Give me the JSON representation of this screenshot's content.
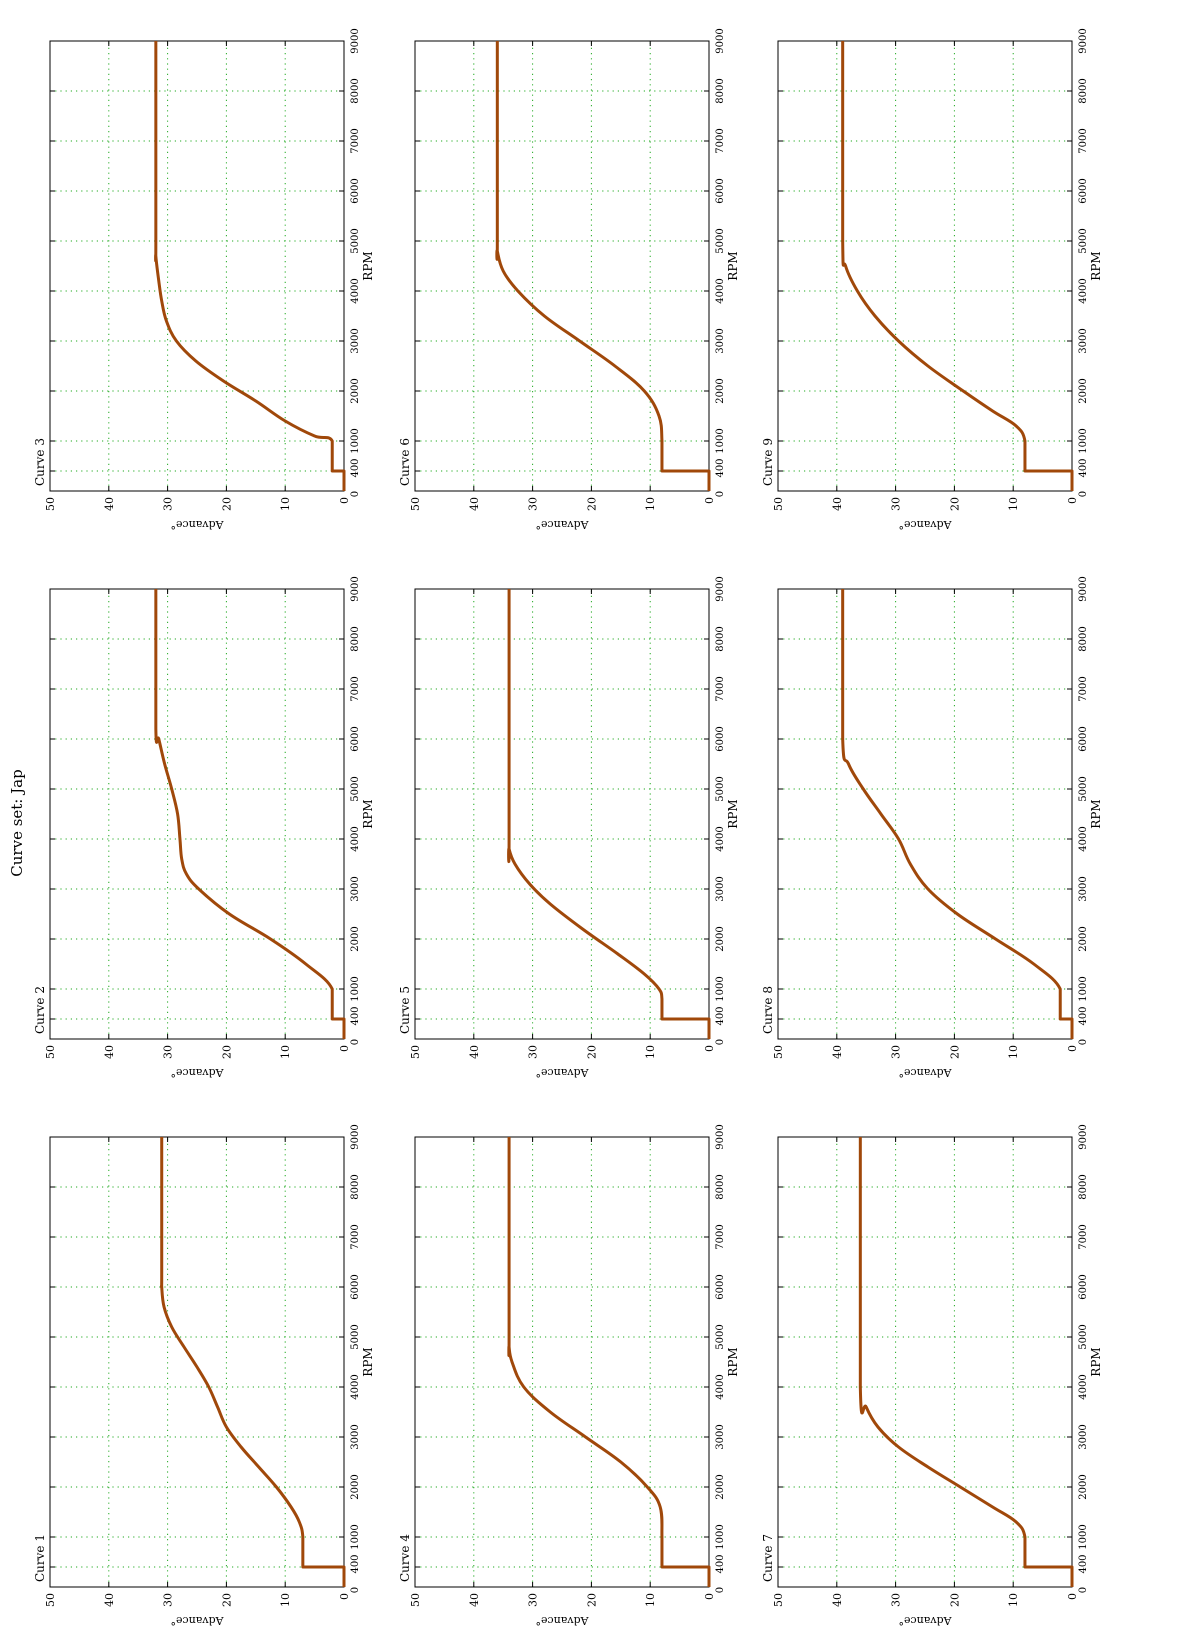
{
  "figure": {
    "title": "Curve set: Jap"
  },
  "chart_data": [
    {
      "type": "line",
      "title": "Curve 1",
      "xlabel": "RPM",
      "ylabel": "Advance°",
      "xlim": [
        0,
        9000
      ],
      "ylim": [
        0,
        50
      ],
      "xticks": [
        0,
        400,
        1000,
        2000,
        3000,
        4000,
        5000,
        6000,
        7000,
        8000,
        9000
      ],
      "yticks": [
        0,
        10,
        20,
        30,
        40,
        50
      ],
      "grid": true,
      "series": [
        {
          "color": "#a0480a",
          "x": [
            0,
            400,
            400,
            1000,
            1300,
            1600,
            2000,
            2400,
            2800,
            3200,
            3600,
            4000,
            4400,
            4800,
            5200,
            5600,
            6000,
            6300,
            9000
          ],
          "y": [
            0,
            0,
            7,
            7,
            7.6,
            9,
            11.5,
            14.5,
            17.5,
            20,
            21.5,
            23,
            25,
            27.2,
            29.3,
            30.6,
            31,
            31,
            31
          ]
        }
      ]
    },
    {
      "type": "line",
      "title": "Curve 2",
      "xlabel": "RPM",
      "ylabel": "Advance°",
      "xlim": [
        0,
        9000
      ],
      "ylim": [
        0,
        50
      ],
      "xticks": [
        0,
        400,
        1000,
        2000,
        3000,
        4000,
        5000,
        6000,
        7000,
        8000,
        9000
      ],
      "yticks": [
        0,
        10,
        20,
        30,
        40,
        50
      ],
      "grid": true,
      "series": [
        {
          "color": "#a0480a",
          "x": [
            0,
            400,
            400,
            1000,
            1500,
            2000,
            2500,
            3000,
            3300,
            3600,
            4000,
            4500,
            5000,
            5500,
            6000,
            6200,
            9000
          ],
          "y": [
            0,
            0,
            2,
            2,
            6.5,
            12.5,
            19.5,
            24.7,
            26.8,
            27.6,
            27.9,
            28.3,
            29.3,
            30.5,
            31.5,
            32,
            32
          ]
        }
      ]
    },
    {
      "type": "line",
      "title": "Curve 3",
      "xlabel": "RPM",
      "ylabel": "Advance°",
      "xlim": [
        0,
        9000
      ],
      "ylim": [
        0,
        50
      ],
      "xticks": [
        0,
        400,
        1000,
        2000,
        3000,
        4000,
        5000,
        6000,
        7000,
        8000,
        9000
      ],
      "yticks": [
        0,
        10,
        20,
        30,
        40,
        50
      ],
      "grid": true,
      "series": [
        {
          "color": "#a0480a",
          "x": [
            0,
            400,
            400,
            1000,
            1100,
            1400,
            1800,
            2200,
            2600,
            3000,
            3400,
            3800,
            4200,
            4700,
            5000,
            9000
          ],
          "y": [
            0,
            0,
            2,
            2,
            5,
            10,
            15,
            20.5,
            25.2,
            28.5,
            30.2,
            31,
            31.5,
            32,
            32,
            32
          ]
        }
      ]
    },
    {
      "type": "line",
      "title": "Curve 4",
      "xlabel": "RPM",
      "ylabel": "Advance°",
      "xlim": [
        0,
        9000
      ],
      "ylim": [
        0,
        50
      ],
      "xticks": [
        0,
        400,
        1000,
        2000,
        3000,
        4000,
        5000,
        6000,
        7000,
        8000,
        9000
      ],
      "yticks": [
        0,
        10,
        20,
        30,
        40,
        50
      ],
      "grid": true,
      "series": [
        {
          "color": "#a0480a",
          "x": [
            0,
            400,
            400,
            1000,
            1600,
            2000,
            2500,
            3000,
            3500,
            4000,
            4500,
            4800,
            5000,
            9000
          ],
          "y": [
            0,
            0,
            8,
            8,
            8.3,
            10.5,
            15,
            21,
            27,
            31.5,
            33.5,
            34,
            34,
            34
          ]
        }
      ]
    },
    {
      "type": "line",
      "title": "Curve 5",
      "xlabel": "RPM",
      "ylabel": "Advance°",
      "xlim": [
        0,
        9000
      ],
      "ylim": [
        0,
        50
      ],
      "xticks": [
        0,
        400,
        1000,
        2000,
        3000,
        4000,
        5000,
        6000,
        7000,
        8000,
        9000
      ],
      "yticks": [
        0,
        10,
        20,
        30,
        40,
        50
      ],
      "grid": true,
      "series": [
        {
          "color": "#a0480a",
          "x": [
            0,
            400,
            400,
            800,
            1000,
            1300,
            1700,
            2200,
            2700,
            3100,
            3500,
            3800,
            4000,
            9000
          ],
          "y": [
            0,
            0,
            8,
            8,
            8.5,
            11,
            15.5,
            21.5,
            27,
            30.5,
            33,
            34,
            34,
            34
          ]
        }
      ]
    },
    {
      "type": "line",
      "title": "Curve 6",
      "xlabel": "RPM",
      "ylabel": "Advance°",
      "xlim": [
        0,
        9000
      ],
      "ylim": [
        0,
        50
      ],
      "xticks": [
        0,
        400,
        1000,
        2000,
        3000,
        4000,
        5000,
        6000,
        7000,
        8000,
        9000
      ],
      "yticks": [
        0,
        10,
        20,
        30,
        40,
        50
      ],
      "grid": true,
      "series": [
        {
          "color": "#a0480a",
          "x": [
            0,
            400,
            400,
            1000,
            1500,
            2000,
            2500,
            3000,
            3500,
            4000,
            4400,
            4800,
            5000,
            9000
          ],
          "y": [
            0,
            0,
            8,
            8,
            8.5,
            11,
            16,
            22,
            28,
            32.5,
            35,
            36,
            36,
            36
          ]
        }
      ]
    },
    {
      "type": "line",
      "title": "Curve 7",
      "xlabel": "RPM",
      "ylabel": "Advance°",
      "xlim": [
        0,
        9000
      ],
      "ylim": [
        0,
        50
      ],
      "xticks": [
        0,
        400,
        1000,
        2000,
        3000,
        4000,
        5000,
        6000,
        7000,
        8000,
        9000
      ],
      "yticks": [
        0,
        10,
        20,
        30,
        40,
        50
      ],
      "grid": true,
      "series": [
        {
          "color": "#a0480a",
          "x": [
            0,
            400,
            400,
            1000,
            1300,
            1600,
            2000,
            2400,
            2800,
            3200,
            3600,
            4000,
            9000
          ],
          "y": [
            0,
            0,
            8,
            8,
            9.5,
            13.5,
            19,
            24.5,
            29.5,
            33,
            35,
            36,
            36
          ]
        }
      ]
    },
    {
      "type": "line",
      "title": "Curve 8",
      "xlabel": "RPM",
      "ylabel": "Advance°",
      "xlim": [
        0,
        9000
      ],
      "ylim": [
        0,
        50
      ],
      "xticks": [
        0,
        400,
        1000,
        2000,
        3000,
        4000,
        5000,
        6000,
        7000,
        8000,
        9000
      ],
      "yticks": [
        0,
        10,
        20,
        30,
        40,
        50
      ],
      "grid": true,
      "series": [
        {
          "color": "#a0480a",
          "x": [
            0,
            400,
            400,
            1000,
            1500,
            2000,
            2500,
            3000,
            3500,
            4000,
            4500,
            5000,
            5500,
            6000,
            9000
          ],
          "y": [
            0,
            0,
            2,
            2,
            6.5,
            13,
            19.5,
            24.5,
            27.5,
            29.5,
            32.5,
            35.5,
            38,
            39,
            39
          ]
        }
      ]
    },
    {
      "type": "line",
      "title": "Curve 9",
      "xlabel": "RPM",
      "ylabel": "Advance°",
      "xlim": [
        0,
        9000
      ],
      "ylim": [
        0,
        50
      ],
      "xticks": [
        0,
        400,
        1000,
        2000,
        3000,
        4000,
        5000,
        6000,
        7000,
        8000,
        9000
      ],
      "yticks": [
        0,
        10,
        20,
        30,
        40,
        50
      ],
      "grid": true,
      "series": [
        {
          "color": "#a0480a",
          "x": [
            0,
            400,
            400,
            1000,
            1300,
            1600,
            2000,
            2500,
            3000,
            3500,
            4000,
            4500,
            5000,
            9000
          ],
          "y": [
            0,
            0,
            8,
            8,
            9.5,
            13.5,
            18.5,
            24.5,
            29.5,
            33.5,
            36.5,
            38.5,
            39,
            39
          ]
        }
      ]
    }
  ]
}
